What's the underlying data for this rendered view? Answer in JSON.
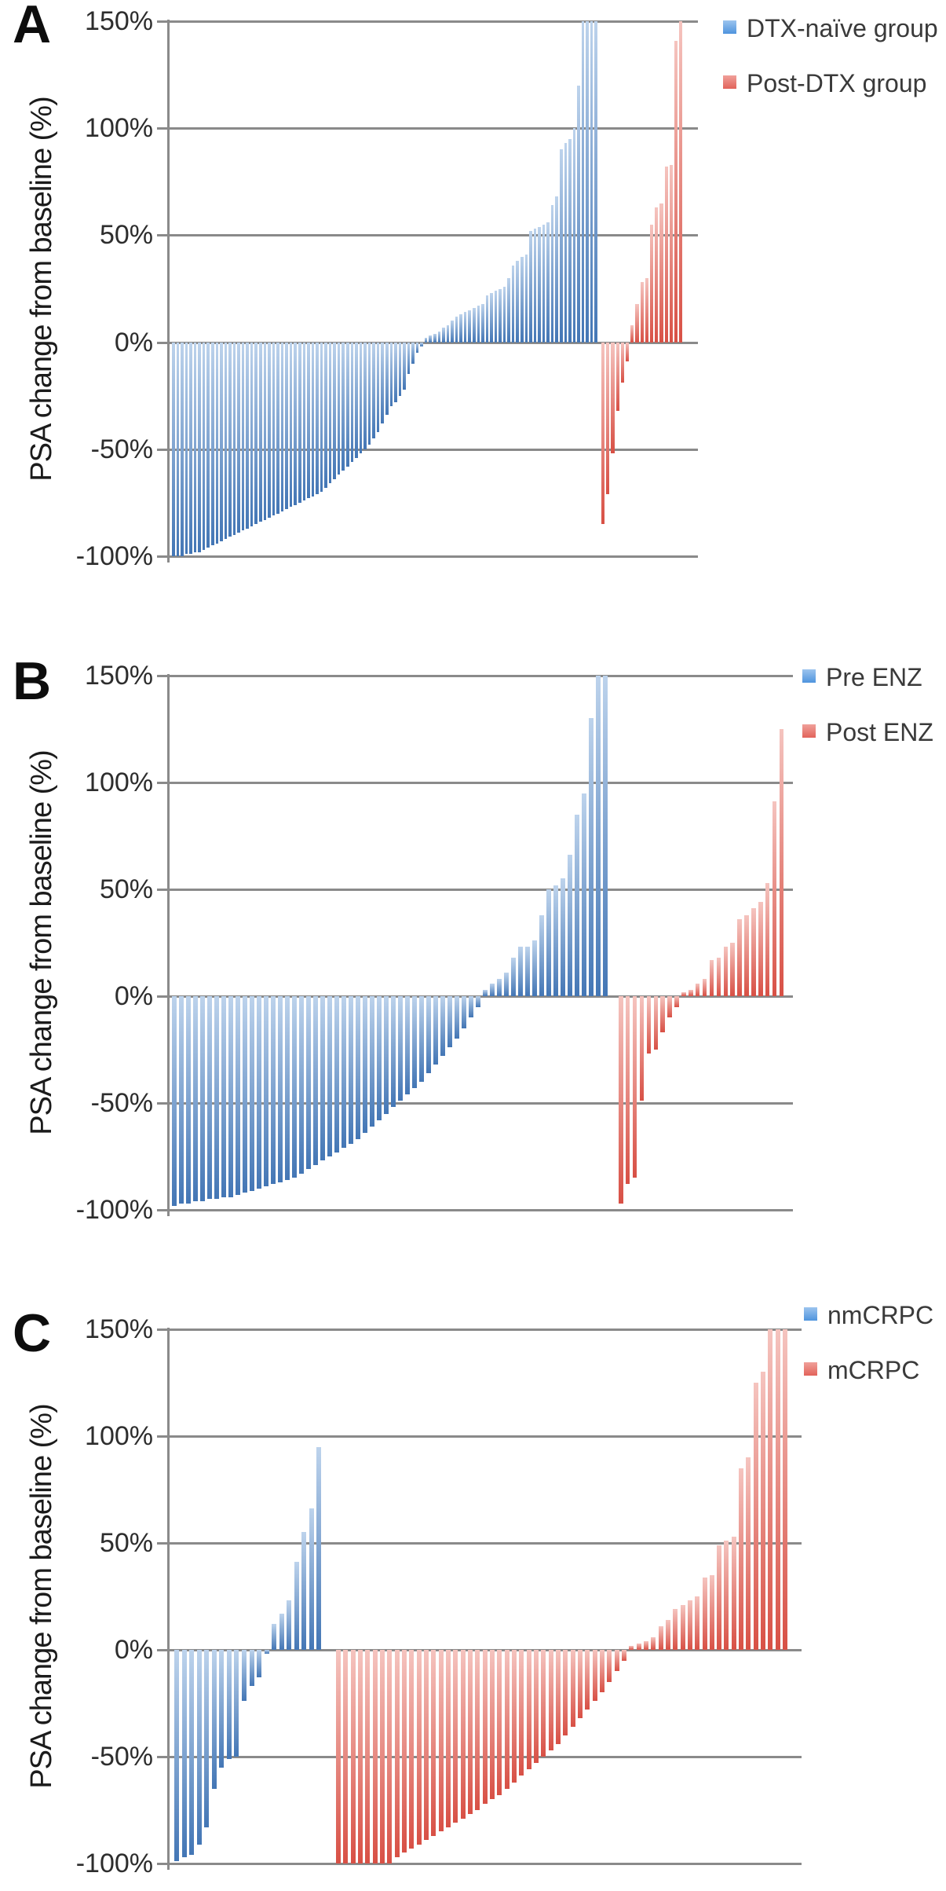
{
  "colors": {
    "bar_blue_light": "#bdd3ec",
    "bar_blue_dark": "#4376b5",
    "bar_red_light": "#f5c4bf",
    "bar_red_dark": "#d85045",
    "legend_blue": "#4f94de",
    "legend_red": "#e2635a",
    "grid": "#8a8a8a"
  },
  "chart_data": [
    {
      "type": "bar",
      "panel": "A",
      "ylabel": "PSA change from baseline (%)",
      "ylim": [
        -100,
        150
      ],
      "yticks": [
        "150%",
        "100%",
        "50%",
        "0%",
        "-50%",
        "-100%"
      ],
      "grid": true,
      "legend_position": "top-right",
      "series": [
        {
          "name": "DTX-naïve group",
          "color": "blue",
          "values": [
            -100,
            -100,
            -100,
            -99,
            -99,
            -98,
            -98,
            -97,
            -96,
            -95,
            -94,
            -93,
            -92,
            -91,
            -90,
            -89,
            -88,
            -87,
            -86,
            -85,
            -84,
            -83,
            -82,
            -81,
            -80,
            -79,
            -78,
            -77,
            -76,
            -75,
            -74,
            -73,
            -72,
            -71,
            -70,
            -68,
            -66,
            -64,
            -62,
            -60,
            -58,
            -56,
            -54,
            -52,
            -50,
            -48,
            -45,
            -42,
            -38,
            -34,
            -30,
            -28,
            -25,
            -22,
            -15,
            -10,
            -5,
            -2,
            2,
            3,
            4,
            5,
            7,
            8,
            10,
            12,
            13,
            14,
            15,
            16,
            17,
            18,
            22,
            23,
            24,
            25,
            26,
            30,
            36,
            38,
            40,
            41,
            52,
            53,
            54,
            55,
            56,
            64,
            68,
            90,
            93,
            95,
            100,
            120,
            150,
            150,
            150,
            150
          ]
        },
        {
          "name": "Post-DTX group",
          "color": "red",
          "values": [
            -85,
            -71,
            -52,
            -32,
            -19,
            -9,
            8,
            18,
            28,
            30,
            55,
            63,
            65,
            82,
            83,
            141,
            150
          ]
        }
      ]
    },
    {
      "type": "bar",
      "panel": "B",
      "ylabel": "PSA change from baseline (%)",
      "ylim": [
        -100,
        150
      ],
      "yticks": [
        "150%",
        "100%",
        "50%",
        "0%",
        "-50%",
        "-100%"
      ],
      "grid": true,
      "legend_position": "top-right",
      "series": [
        {
          "name": "Pre ENZ",
          "color": "blue",
          "values": [
            -98,
            -97,
            -97,
            -96,
            -96,
            -95,
            -95,
            -94,
            -94,
            -93,
            -92,
            -91,
            -90,
            -89,
            -88,
            -87,
            -86,
            -85,
            -83,
            -81,
            -79,
            -77,
            -75,
            -73,
            -71,
            -69,
            -67,
            -64,
            -61,
            -58,
            -55,
            -52,
            -49,
            -46,
            -43,
            -40,
            -36,
            -32,
            -28,
            -24,
            -20,
            -15,
            -10,
            -5,
            3,
            6,
            8,
            11,
            18,
            23,
            23,
            26,
            38,
            50,
            52,
            55,
            66,
            85,
            95,
            130,
            150,
            150
          ]
        },
        {
          "name": "Post ENZ",
          "color": "red",
          "values": [
            -97,
            -88,
            -85,
            -49,
            -27,
            -25,
            -17,
            -10,
            -5,
            2,
            3,
            6,
            8,
            17,
            18,
            23,
            25,
            36,
            38,
            41,
            44,
            53,
            91,
            125
          ]
        }
      ]
    },
    {
      "type": "bar",
      "panel": "C",
      "ylabel": "PSA change from baseline (%)",
      "ylim": [
        -100,
        150
      ],
      "yticks": [
        "150%",
        "100%",
        "50%",
        "0%",
        "-50%",
        "-100%"
      ],
      "grid": true,
      "legend_position": "top-right",
      "series": [
        {
          "name": "nmCRPC",
          "color": "blue",
          "values": [
            -99,
            -97,
            -96,
            -91,
            -83,
            -65,
            -55,
            -51,
            -50,
            -24,
            -17,
            -13,
            -2,
            12,
            17,
            23,
            41,
            55,
            66,
            95
          ]
        },
        {
          "name": "mCRPC",
          "color": "red",
          "values": [
            -100,
            -100,
            -100,
            -100,
            -100,
            -100,
            -100,
            -100,
            -97,
            -95,
            -93,
            -91,
            -89,
            -87,
            -85,
            -83,
            -81,
            -79,
            -77,
            -75,
            -72,
            -70,
            -68,
            -65,
            -62,
            -59,
            -56,
            -53,
            -50,
            -47,
            -44,
            -40,
            -36,
            -32,
            -28,
            -24,
            -20,
            -15,
            -10,
            -5,
            2,
            3,
            4,
            6,
            11,
            14,
            19,
            21,
            23,
            25,
            34,
            35,
            49,
            51,
            53,
            85,
            90,
            125,
            130,
            150,
            150,
            150
          ]
        }
      ]
    }
  ]
}
